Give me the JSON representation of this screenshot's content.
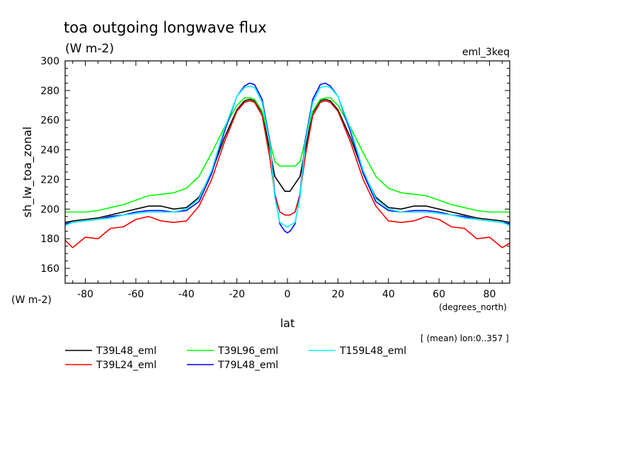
{
  "chart_data": {
    "type": "line",
    "title": "toa outgoing longwave flux",
    "units": "(W m-2)",
    "experiment": "eml_3keq",
    "xlabel": "lat",
    "xunits": "(degrees_north)",
    "ylabel": "sh_lw_toa_zonal",
    "yunits": "(W m-2)",
    "footnote": "[ (mean) lon:0..357 ]",
    "xlim": [
      -88,
      88
    ],
    "ylim": [
      150,
      300
    ],
    "xticks": [
      -80,
      -60,
      -40,
      -20,
      0,
      20,
      40,
      60,
      80
    ],
    "yticks": [
      160,
      180,
      200,
      220,
      240,
      260,
      280,
      300
    ],
    "x": [
      -88,
      -85,
      -80,
      -75,
      -70,
      -65,
      -60,
      -55,
      -50,
      -45,
      -40,
      -35,
      -30,
      -25,
      -20,
      -17,
      -15,
      -13,
      -10,
      -7,
      -5,
      -3,
      -1,
      0,
      1,
      3,
      5,
      7,
      10,
      13,
      15,
      17,
      20,
      25,
      30,
      35,
      40,
      45,
      50,
      55,
      60,
      65,
      70,
      75,
      80,
      85,
      88
    ],
    "series": [
      {
        "name": "T39L48_eml",
        "color": "#000000",
        "values": [
          191,
          192,
          193,
          194,
          196,
          198,
          200,
          202,
          202,
          200,
          201,
          208,
          225,
          248,
          267,
          273,
          274,
          273,
          265,
          240,
          222,
          217,
          212,
          212,
          212,
          217,
          222,
          240,
          265,
          273,
          274,
          273,
          267,
          248,
          225,
          208,
          201,
          200,
          202,
          202,
          200,
          198,
          196,
          194,
          193,
          192,
          191
        ]
      },
      {
        "name": "T39L24_eml",
        "color": "#ff0000",
        "values": [
          179,
          174,
          181,
          180,
          187,
          188,
          193,
          195,
          192,
          191,
          192,
          202,
          220,
          245,
          266,
          272,
          273,
          272,
          263,
          235,
          210,
          198,
          196,
          196,
          196,
          198,
          210,
          235,
          263,
          272,
          273,
          272,
          266,
          245,
          220,
          202,
          192,
          191,
          192,
          195,
          193,
          188,
          187,
          180,
          181,
          174,
          177
        ]
      },
      {
        "name": "T39L96_eml",
        "color": "#00ff00",
        "values": [
          198,
          198,
          198,
          199,
          201,
          203,
          206,
          209,
          210,
          211,
          214,
          222,
          238,
          255,
          270,
          275,
          275,
          274,
          266,
          246,
          232,
          229,
          229,
          229,
          229,
          229,
          232,
          246,
          266,
          274,
          275,
          275,
          270,
          255,
          238,
          222,
          214,
          211,
          210,
          209,
          206,
          203,
          201,
          199,
          198,
          198,
          198
        ]
      },
      {
        "name": "T79L48_eml",
        "color": "#0000ff",
        "values": [
          190,
          191,
          192,
          193,
          195,
          196,
          198,
          199,
          199,
          198,
          199,
          205,
          224,
          252,
          276,
          283,
          285,
          284,
          274,
          246,
          210,
          190,
          185,
          184,
          185,
          190,
          210,
          246,
          274,
          284,
          285,
          283,
          276,
          252,
          224,
          205,
          199,
          198,
          199,
          199,
          198,
          196,
          195,
          193,
          192,
          191,
          190
        ]
      },
      {
        "name": "T159L48_eml",
        "color": "#00ffff",
        "values": [
          189,
          191,
          192,
          193,
          194,
          196,
          197,
          198,
          198,
          198,
          200,
          207,
          226,
          254,
          276,
          282,
          283,
          282,
          272,
          244,
          208,
          191,
          189,
          188,
          189,
          191,
          208,
          244,
          272,
          282,
          283,
          282,
          276,
          254,
          226,
          207,
          200,
          198,
          198,
          198,
          197,
          196,
          194,
          193,
          192,
          191,
          189
        ]
      }
    ]
  }
}
